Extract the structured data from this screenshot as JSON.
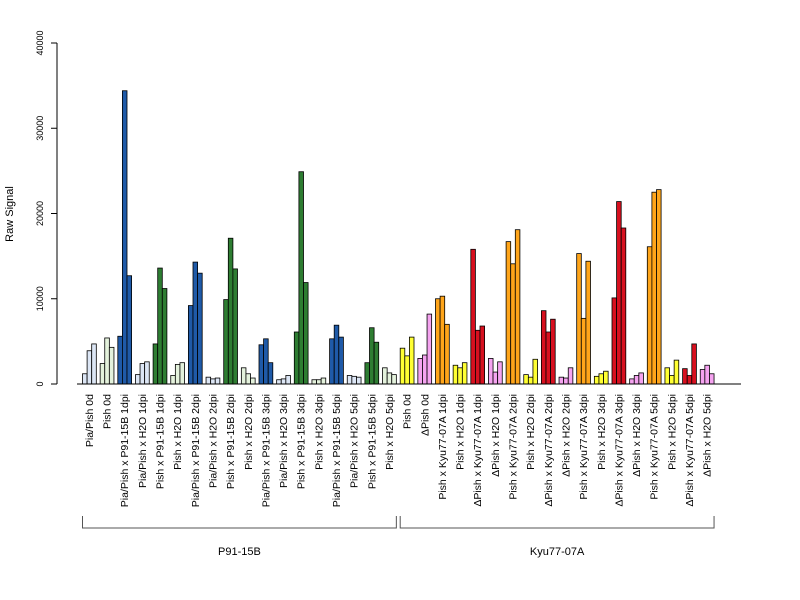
{
  "chart_data": {
    "type": "bar",
    "ylabel": "Raw Signal",
    "ylim": [
      0,
      40000
    ],
    "yticks": [
      0,
      10000,
      20000,
      30000,
      40000
    ],
    "grid": false,
    "legend": "none",
    "colors": {
      "pale_blue": "#dce6f5",
      "pale_green": "#e4f2dc",
      "blue": "#1f5aa8",
      "green": "#2e7d32",
      "yellow": "#ffff33",
      "pink": "#f5a3f0",
      "orange": "#ffa51a",
      "red": "#d7101f"
    },
    "groups": [
      {
        "label": "Pia/Pish 0d",
        "color": "pale_blue",
        "values": [
          1200,
          3900,
          4700
        ]
      },
      {
        "label": "Pish 0d",
        "color": "pale_green",
        "values": [
          2400,
          5400,
          4300
        ]
      },
      {
        "label": "Pia/Pish x P91-15B 1dpi",
        "color": "blue",
        "values": [
          5600,
          34400,
          12700
        ]
      },
      {
        "label": "Pia/Pish x H2O 1dpi",
        "color": "pale_blue",
        "values": [
          1100,
          2400,
          2600
        ]
      },
      {
        "label": "Pish x P91-15B 1dpi",
        "color": "green",
        "values": [
          4700,
          13600,
          11200
        ]
      },
      {
        "label": "Pish x H2O 1dpi",
        "color": "pale_green",
        "values": [
          1000,
          2300,
          2500
        ]
      },
      {
        "label": "Pia/Pish x P91-15B 2dpi",
        "color": "blue",
        "values": [
          9200,
          14300,
          13000
        ]
      },
      {
        "label": "Pia/Pish x H2O 2dpi",
        "color": "pale_blue",
        "values": [
          800,
          600,
          700
        ]
      },
      {
        "label": "Pish x P91-15B 2dpi",
        "color": "green",
        "values": [
          9900,
          17100,
          13500
        ]
      },
      {
        "label": "Pish x H2O 2dpi",
        "color": "pale_green",
        "values": [
          1900,
          1200,
          700
        ]
      },
      {
        "label": "Pia/Pish x P91-15B 3dpi",
        "color": "blue",
        "values": [
          4600,
          5300,
          2500
        ]
      },
      {
        "label": "Pia/Pish x H2O 3dpi",
        "color": "pale_blue",
        "values": [
          500,
          600,
          1000
        ]
      },
      {
        "label": "Pish x P91-15B 3dpi",
        "color": "green",
        "values": [
          6100,
          24900,
          11900
        ]
      },
      {
        "label": "Pish x H2O 3dpi",
        "color": "pale_green",
        "values": [
          500,
          500,
          700
        ]
      },
      {
        "label": "Pia/Pish x P91-15B 5dpi",
        "color": "blue",
        "values": [
          5300,
          6900,
          5500
        ]
      },
      {
        "label": "Pia/Pish x H2O 5dpi",
        "color": "pale_blue",
        "values": [
          1000,
          900,
          800
        ]
      },
      {
        "label": "Pish x P91-15B 5dpi",
        "color": "green",
        "values": [
          2500,
          6600,
          4900
        ]
      },
      {
        "label": "Pish x H2O 5dpi",
        "color": "pale_green",
        "values": [
          1900,
          1300,
          1100
        ]
      },
      {
        "label": "Pish 0d",
        "color": "yellow",
        "values": [
          4200,
          3300,
          5500
        ]
      },
      {
        "label": "ΔPish 0d",
        "color": "pink",
        "values": [
          3000,
          3400,
          8200
        ]
      },
      {
        "label": "Pish x Kyu77-07A 1dpi",
        "color": "orange",
        "values": [
          10000,
          10300,
          7000
        ]
      },
      {
        "label": "Pish x H2O 1dpi",
        "color": "yellow",
        "values": [
          2200,
          1900,
          2500
        ]
      },
      {
        "label": "ΔPish x Kyu77-07A 1dpi",
        "color": "red",
        "values": [
          15800,
          6300,
          6800
        ]
      },
      {
        "label": "ΔPish x H2O 1dpi",
        "color": "pink",
        "values": [
          3000,
          1400,
          2600
        ]
      },
      {
        "label": "Pish x Kyu77-07A 2dpi",
        "color": "orange",
        "values": [
          16700,
          14100,
          18100
        ]
      },
      {
        "label": "Pish x H2O 2dpi",
        "color": "yellow",
        "values": [
          1100,
          800,
          2900
        ]
      },
      {
        "label": "ΔPish x Kyu77-07A 2dpi",
        "color": "red",
        "values": [
          8600,
          6100,
          7600
        ]
      },
      {
        "label": "ΔPish x H2O 2dpi",
        "color": "pink",
        "values": [
          800,
          700,
          1900
        ]
      },
      {
        "label": "Pish x Kyu77-07A 3dpi",
        "color": "orange",
        "values": [
          15300,
          7700,
          14400
        ]
      },
      {
        "label": "Pish x H2O 3dpi",
        "color": "yellow",
        "values": [
          900,
          1200,
          1500
        ]
      },
      {
        "label": "ΔPish x Kyu77-07A 3dpi",
        "color": "red",
        "values": [
          10100,
          21400,
          18300
        ]
      },
      {
        "label": "ΔPish x H2O 3dpi",
        "color": "pink",
        "values": [
          600,
          1000,
          1300
        ]
      },
      {
        "label": "Pish x Kyu77-07A 5dpi",
        "color": "orange",
        "values": [
          16100,
          22500,
          22800
        ]
      },
      {
        "label": "Pish x H2O 5dpi",
        "color": "yellow",
        "values": [
          1900,
          1000,
          2800
        ]
      },
      {
        "label": "ΔPish x Kyu77-07A 5dpi",
        "color": "red",
        "values": [
          1800,
          1000,
          4700
        ]
      },
      {
        "label": "ΔPish x H2O 5dpi",
        "color": "pink",
        "values": [
          1700,
          2200,
          1200
        ]
      }
    ],
    "brackets": [
      {
        "label": "P91-15B",
        "first_group": 0,
        "last_group": 17
      },
      {
        "label": "Kyu77-07A",
        "first_group": 18,
        "last_group": 35
      }
    ]
  }
}
